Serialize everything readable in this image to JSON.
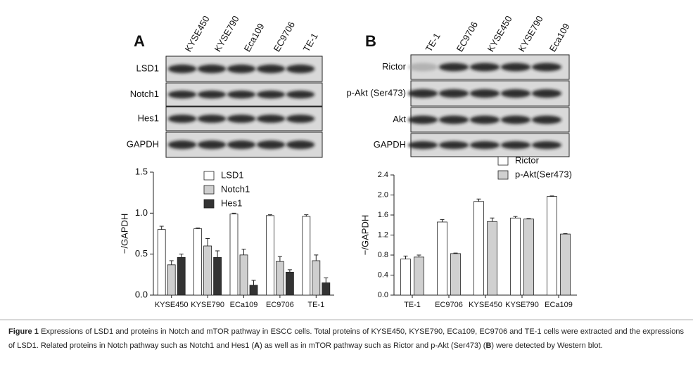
{
  "panels": [
    {
      "label": "A",
      "lanes": [
        "KYSE450",
        "KYSE790",
        "Eca109",
        "EC9706",
        "TE-1"
      ],
      "rows": [
        "LSD1",
        "Notch1",
        "Hes1",
        "GAPDH"
      ]
    },
    {
      "label": "B",
      "lanes": [
        "TE-1",
        "EC9706",
        "KYSE450",
        "KYSE790",
        "Eca109"
      ],
      "rows": [
        "Rictor",
        "p-Akt (Ser473)",
        "Akt",
        "GAPDH"
      ]
    }
  ],
  "chart_data": [
    {
      "type": "bar",
      "y_label": "−/GAPDH",
      "categories": [
        "KYSE450",
        "KYSE790",
        "ECa109",
        "EC9706",
        "TE-1"
      ],
      "series": [
        {
          "name": "LSD1",
          "color": "#ffffff",
          "values": [
            0.8,
            0.81,
            0.99,
            0.97,
            0.96
          ],
          "errors": [
            0.04,
            0.01,
            0.01,
            0.01,
            0.02
          ]
        },
        {
          "name": "Notch1",
          "color": "#cfcfcf",
          "values": [
            0.37,
            0.6,
            0.49,
            0.41,
            0.42
          ],
          "errors": [
            0.05,
            0.09,
            0.07,
            0.06,
            0.07
          ]
        },
        {
          "name": "Hes1",
          "color": "#333333",
          "values": [
            0.46,
            0.46,
            0.12,
            0.28,
            0.15
          ],
          "errors": [
            0.04,
            0.08,
            0.06,
            0.03,
            0.06
          ]
        }
      ],
      "ylim": [
        0,
        1.5
      ],
      "yticks": [
        {
          "value": 0,
          "label": "0.0"
        },
        0.5,
        {
          "value": 1,
          "label": "1.0"
        },
        1.5
      ]
    },
    {
      "type": "bar",
      "y_label": "−/GAPDH",
      "categories": [
        "TE-1",
        "EC9706",
        "KYSE450",
        "KYSE790",
        "ECa109"
      ],
      "series": [
        {
          "name": "Rictor",
          "color": "#ffffff",
          "values": [
            0.72,
            1.46,
            1.87,
            1.54,
            1.97
          ],
          "errors": [
            0.06,
            0.05,
            0.05,
            0.03,
            0.01
          ]
        },
        {
          "name": "p-Akt(Ser473)",
          "color": "#d0d0d0",
          "values": [
            0.76,
            0.83,
            1.47,
            1.52,
            1.22
          ],
          "errors": [
            0.04,
            0.01,
            0.07,
            0.01,
            0.01
          ]
        }
      ],
      "ylim": [
        0,
        2.4
      ],
      "yticks": [
        {
          "value": 0,
          "label": "0.0"
        },
        0.4,
        0.8,
        {
          "value": 1.2,
          "label": "1.2"
        },
        1.6,
        {
          "value": 2,
          "label": "2.0"
        },
        2.4
      ]
    }
  ],
  "caption": [
    {
      "text": "Figure 1",
      "bold": true
    },
    {
      "text": " Expressions of LSD1 and proteins in Notch and mTOR pathway in ESCC cells. Total proteins of KYSE450, KYSE790, ECa109, EC9706 and TE-1 cells were extracted and the expressions of LSD1. Related proteins in Notch pathway such as Notch1 and Hes1 (",
      "bold": false
    },
    {
      "text": "A",
      "bold": true
    },
    {
      "text": ") as well as in mTOR pathway such as Rictor and p-Akt (Ser473) (",
      "bold": false
    },
    {
      "text": "B",
      "bold": true
    },
    {
      "text": ") were detected by Western blot.",
      "bold": false
    }
  ]
}
